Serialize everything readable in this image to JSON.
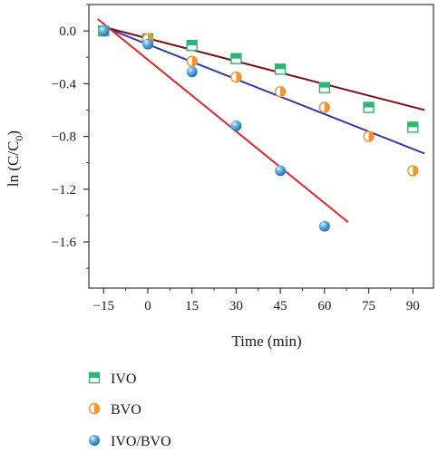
{
  "chart_data": {
    "type": "scatter",
    "xlabel": "Time (min)",
    "ylabel_main": "ln (C/C",
    "ylabel_sub": "0",
    "ylabel_close": ")",
    "xlim": [
      -20,
      97
    ],
    "ylim": [
      -1.95,
      0.2
    ],
    "xticks": [
      -15,
      0,
      15,
      30,
      45,
      60,
      75,
      90
    ],
    "xtick_labels": [
      "−15",
      "0",
      "15",
      "30",
      "45",
      "60",
      "75",
      "90"
    ],
    "yticks": [
      0.0,
      -0.4,
      -0.8,
      -1.2,
      -1.6
    ],
    "ytick_labels": [
      "0.0",
      "−0.4",
      "−0.8",
      "−1.2",
      "−1.6"
    ],
    "grid": false,
    "legend_position": "below",
    "series": [
      {
        "name": "IVO",
        "marker": "half-filled-square",
        "color": "#2bb673",
        "line_color": "#7a0f14",
        "x": [
          -15,
          0,
          15,
          30,
          45,
          60,
          75,
          90
        ],
        "y": [
          0.0,
          -0.06,
          -0.11,
          -0.21,
          -0.29,
          -0.43,
          -0.58,
          -0.73
        ],
        "fit": {
          "x": [
            -15,
            94
          ],
          "y": [
            0.03,
            -0.6
          ]
        }
      },
      {
        "name": "BVO",
        "marker": "half-filled-circle",
        "color": "#f5932d",
        "line_color": "#2f3aa8",
        "x": [
          -15,
          0,
          15,
          30,
          45,
          60,
          75,
          90
        ],
        "y": [
          0.0,
          -0.06,
          -0.23,
          -0.35,
          -0.46,
          -0.58,
          -0.8,
          -1.06
        ],
        "fit": {
          "x": [
            -15,
            94
          ],
          "y": [
            0.03,
            -0.93
          ]
        }
      },
      {
        "name": "IVO/BVO",
        "marker": "sphere",
        "color": "#3a9ad9",
        "line_color": "#e1262b",
        "x": [
          -15,
          0,
          15,
          30,
          45,
          60
        ],
        "y": [
          0.0,
          -0.1,
          -0.31,
          -0.72,
          -1.06,
          -1.48
        ],
        "fit": {
          "x": [
            -17,
            68
          ],
          "y": [
            0.09,
            -1.45
          ]
        }
      }
    ]
  }
}
